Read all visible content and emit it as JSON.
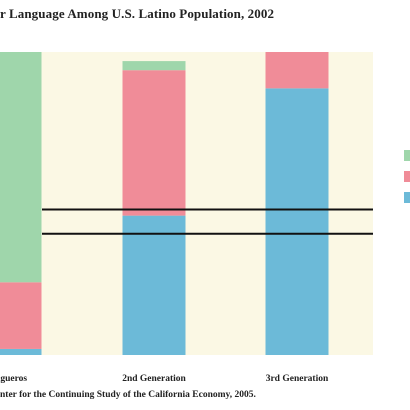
{
  "chart_data": {
    "type": "bar",
    "title": "r Language Among U.S. Latino Population, 2002",
    "categories": [
      "olgueros",
      "2nd Generation",
      "3rd Generation"
    ],
    "stacked": true,
    "series": [
      {
        "values": [
          2,
          46,
          88
        ],
        "color": "#6cbad8"
      },
      {
        "values": [
          22,
          48,
          12
        ],
        "color": "#f08c98"
      },
      {
        "values": [
          76,
          3,
          0
        ],
        "color": "#9fd6ab"
      }
    ],
    "reference_lines": [
      40,
      48
    ],
    "ylim": [
      0,
      100
    ],
    "grid": false,
    "legend": {
      "position": "right",
      "entries": []
    },
    "plot_background": "#fbf8e4",
    "source": "nter for the Continuing Study of the California Economy, 2005."
  }
}
